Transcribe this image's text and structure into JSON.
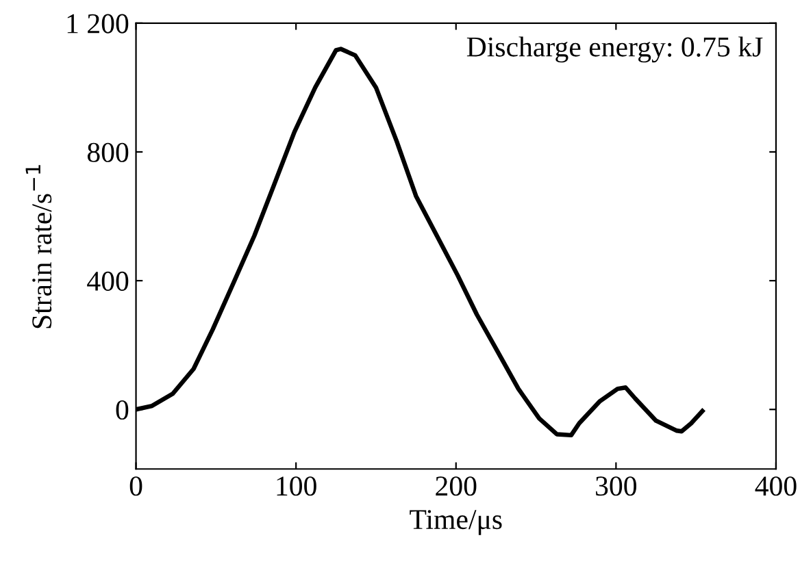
{
  "chart_data": {
    "type": "line",
    "xlabel": "Time/μs",
    "ylabel": "Strain rate/s$^{−1}$",
    "annotations": [
      "Discharge energy: 0.75 kJ"
    ],
    "x": [
      0,
      10,
      23,
      36,
      48,
      61,
      74,
      86,
      99,
      112,
      125,
      128,
      137,
      150,
      163,
      175,
      188,
      201,
      213,
      226,
      239,
      252,
      263,
      272,
      277,
      290,
      301,
      306,
      312,
      325,
      338,
      341,
      347,
      354
    ],
    "series": [
      {
        "color": "#000000",
        "values": [
          0,
          11,
          49,
          126,
          249,
          394,
          540,
          694,
          862,
          1000,
          1116,
          1120,
          1100,
          1000,
          832,
          663,
          540,
          417,
          295,
          180,
          64,
          -28,
          -77,
          -80,
          -43,
          26,
          64,
          68,
          34,
          -35,
          -66,
          -68,
          -43,
          -5
        ]
      }
    ],
    "xlim": [
      0,
      400
    ],
    "xticks": [
      0,
      100,
      200,
      300,
      400
    ],
    "ylim": [
      -185,
      1200
    ],
    "yticks": [
      0,
      400,
      800,
      {
        "value": 1200,
        "label": "1 200"
      }
    ],
    "grid": false,
    "legend": false,
    "marker": "none",
    "line_style": "solid"
  }
}
